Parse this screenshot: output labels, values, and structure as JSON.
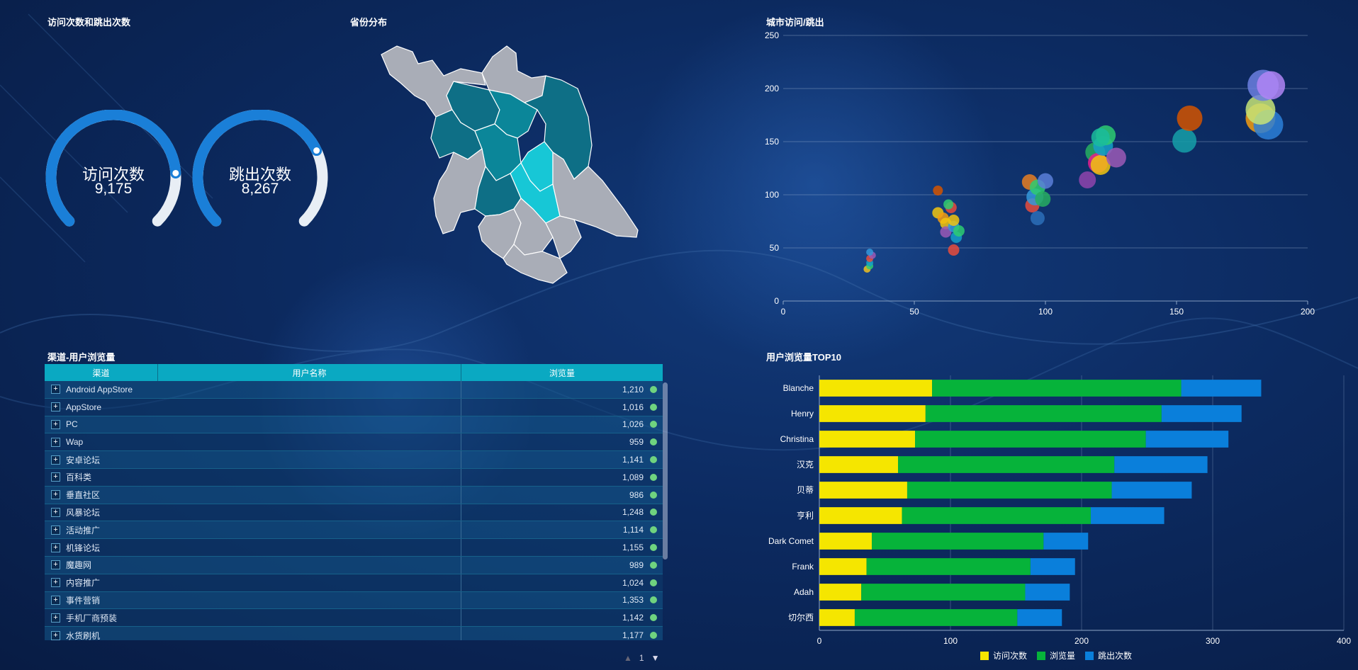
{
  "titles": {
    "visits_bounces": "访问次数和跳出次数",
    "province": "省份分布",
    "city": "城市访问/跳出",
    "channel": "渠道-用户浏览量",
    "top10": "用户浏览量TOP10"
  },
  "gauges": [
    {
      "label": "访问次数",
      "value": "9,175",
      "fraction": 0.82
    },
    {
      "label": "跳出次数",
      "value": "8,267",
      "fraction": 0.74
    }
  ],
  "colors": {
    "gauge_fill": "#1a7fd8",
    "gauge_track": "#e8eef5",
    "map_dark": "#0e6f86",
    "map_mid": "#0b8699",
    "map_light": "#17c7d6",
    "map_gray": "#a9adb7",
    "bar_visits": "#f5e600",
    "bar_views": "#06b33a",
    "bar_bounces": "#0a7fdb"
  },
  "table": {
    "headers": [
      "渠道",
      "用户名称",
      "浏览量"
    ],
    "rows": [
      {
        "name": "Android AppStore",
        "value": "1,210"
      },
      {
        "name": "AppStore",
        "value": "1,016"
      },
      {
        "name": "PC",
        "value": "1,026"
      },
      {
        "name": "Wap",
        "value": "959"
      },
      {
        "name": "安卓论坛",
        "value": "1,141"
      },
      {
        "name": "百科类",
        "value": "1,089"
      },
      {
        "name": "垂直社区",
        "value": "986"
      },
      {
        "name": "风暴论坛",
        "value": "1,248"
      },
      {
        "name": "活动推广",
        "value": "1,114"
      },
      {
        "name": "机锋论坛",
        "value": "1,155"
      },
      {
        "name": "魔趣网",
        "value": "989"
      },
      {
        "name": "内容推广",
        "value": "1,024"
      },
      {
        "name": "事件营销",
        "value": "1,353"
      },
      {
        "name": "手机厂商预装",
        "value": "1,142"
      },
      {
        "name": "水货刷机",
        "value": "1,177"
      }
    ],
    "page": "1"
  },
  "chart_data": [
    {
      "type": "scatter",
      "title": "城市访问/跳出",
      "xlim": [
        0,
        200
      ],
      "ylim": [
        0,
        250
      ],
      "xticks": [
        0,
        50,
        100,
        150,
        200
      ],
      "yticks": [
        0,
        50,
        100,
        150,
        200,
        250
      ],
      "grid": true,
      "points": [
        {
          "x": 32,
          "y": 30,
          "r": 5,
          "color": "#f0c020"
        },
        {
          "x": 33,
          "y": 33,
          "r": 5,
          "color": "#2ecc71"
        },
        {
          "x": 33,
          "y": 36,
          "r": 5,
          "color": "#16a0c8"
        },
        {
          "x": 33,
          "y": 40,
          "r": 5,
          "color": "#e74c3c"
        },
        {
          "x": 34,
          "y": 43,
          "r": 5,
          "color": "#9b59b6"
        },
        {
          "x": 33,
          "y": 46,
          "r": 5,
          "color": "#3498db"
        },
        {
          "x": 59,
          "y": 104,
          "r": 7,
          "color": "#d35400"
        },
        {
          "x": 59,
          "y": 83,
          "r": 8,
          "color": "#f1c40f"
        },
        {
          "x": 61,
          "y": 78,
          "r": 8,
          "color": "#f39c12"
        },
        {
          "x": 62,
          "y": 73,
          "r": 8,
          "color": "#f1c40f"
        },
        {
          "x": 62,
          "y": 65,
          "r": 8,
          "color": "#9b59b6"
        },
        {
          "x": 64,
          "y": 88,
          "r": 8,
          "color": "#e74c3c"
        },
        {
          "x": 63,
          "y": 91,
          "r": 7,
          "color": "#2ecc71"
        },
        {
          "x": 65,
          "y": 70,
          "r": 8,
          "color": "#3498db"
        },
        {
          "x": 66,
          "y": 60,
          "r": 8,
          "color": "#16a0c8"
        },
        {
          "x": 67,
          "y": 66,
          "r": 8,
          "color": "#2ecc71"
        },
        {
          "x": 65,
          "y": 48,
          "r": 8,
          "color": "#e74c3c"
        },
        {
          "x": 65,
          "y": 76,
          "r": 8,
          "color": "#f1c40f"
        },
        {
          "x": 94,
          "y": 112,
          "r": 11,
          "color": "#e67e22"
        },
        {
          "x": 95,
          "y": 90,
          "r": 10,
          "color": "#e74c3c"
        },
        {
          "x": 96,
          "y": 98,
          "r": 12,
          "color": "#3498db"
        },
        {
          "x": 97,
          "y": 107,
          "r": 11,
          "color": "#2ecc71"
        },
        {
          "x": 99,
          "y": 96,
          "r": 11,
          "color": "#27ae60"
        },
        {
          "x": 100,
          "y": 113,
          "r": 11,
          "color": "#5a7fd8"
        },
        {
          "x": 97,
          "y": 78,
          "r": 10,
          "color": "#2c6fb8"
        },
        {
          "x": 116,
          "y": 114,
          "r": 12,
          "color": "#8e44ad"
        },
        {
          "x": 119,
          "y": 140,
          "r": 14,
          "color": "#27ae60"
        },
        {
          "x": 120,
          "y": 130,
          "r": 14,
          "color": "#e91e8c"
        },
        {
          "x": 121,
          "y": 128,
          "r": 14,
          "color": "#f1c40f"
        },
        {
          "x": 122,
          "y": 146,
          "r": 14,
          "color": "#16a0c8"
        },
        {
          "x": 123,
          "y": 156,
          "r": 14,
          "color": "#2ecc71"
        },
        {
          "x": 127,
          "y": 135,
          "r": 14,
          "color": "#9b59b6"
        },
        {
          "x": 121,
          "y": 154,
          "r": 13,
          "color": "#1abc9c"
        },
        {
          "x": 153,
          "y": 151,
          "r": 17,
          "color": "#16a0a8"
        },
        {
          "x": 155,
          "y": 172,
          "r": 18,
          "color": "#d35400"
        },
        {
          "x": 182,
          "y": 172,
          "r": 21,
          "color": "#f39c12"
        },
        {
          "x": 185,
          "y": 166,
          "r": 21,
          "color": "#2c7fd8"
        },
        {
          "x": 182,
          "y": 180,
          "r": 21,
          "color": "#c6e377"
        },
        {
          "x": 183,
          "y": 203,
          "r": 22,
          "color": "#6c7fe0"
        },
        {
          "x": 186,
          "y": 203,
          "r": 20,
          "color": "#b085f5"
        }
      ]
    },
    {
      "type": "bar",
      "orientation": "horizontal",
      "stacked": true,
      "title": "用户浏览量TOP10",
      "categories": [
        "Blanche",
        "Henry",
        "Christina",
        "汉克",
        "贝蒂",
        "亨利",
        "Dark Comet",
        "Frank",
        "Adah",
        "切尔西"
      ],
      "xlim": [
        0,
        400
      ],
      "xticks": [
        0,
        100,
        200,
        300,
        400
      ],
      "legend_position": "bottom",
      "series": [
        {
          "name": "访问次数",
          "values": [
            86,
            81,
            73,
            60,
            67,
            63,
            40,
            36,
            32,
            27
          ]
        },
        {
          "name": "浏览量",
          "values": [
            190,
            180,
            176,
            165,
            156,
            144,
            131,
            125,
            125,
            124
          ]
        },
        {
          "name": "跳出次数",
          "values": [
            61,
            61,
            63,
            71,
            61,
            56,
            34,
            34,
            34,
            34
          ]
        }
      ]
    }
  ]
}
